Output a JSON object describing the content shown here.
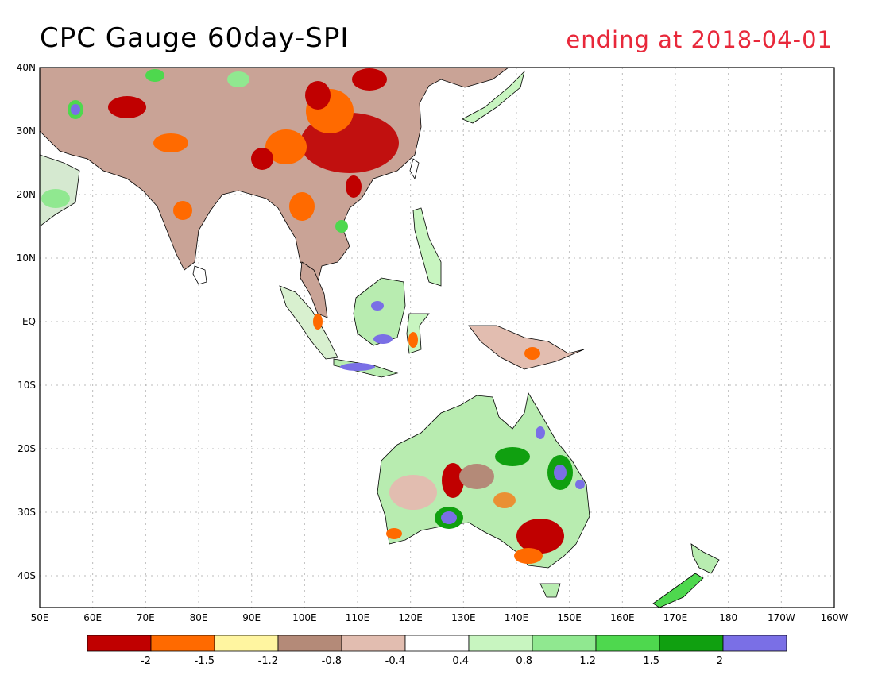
{
  "title": {
    "left": "CPC Gauge 60day-SPI",
    "right": "ending at 2018-04-01"
  },
  "axes": {
    "lat_labels": [
      "40N",
      "30N",
      "20N",
      "10N",
      "EQ",
      "10S",
      "20S",
      "30S",
      "40S"
    ],
    "lon_labels": [
      "50E",
      "60E",
      "70E",
      "80E",
      "90E",
      "100E",
      "110E",
      "120E",
      "130E",
      "140E",
      "150E",
      "160E",
      "170E",
      "180",
      "170W",
      "160W"
    ]
  },
  "colorbar": {
    "colors": [
      "#c00000",
      "#ff6a00",
      "#fff5a0",
      "#b48a78",
      "#e2bdb0",
      "#ffffff",
      "#c8f5c0",
      "#90e890",
      "#4ed84e",
      "#10a010",
      "#7a6fe6"
    ],
    "tick_labels": [
      "-2",
      "-1.5",
      "-1.2",
      "-0.8",
      "-0.4",
      "0.4",
      "0.8",
      "1.2",
      "1.5",
      "2"
    ]
  }
}
